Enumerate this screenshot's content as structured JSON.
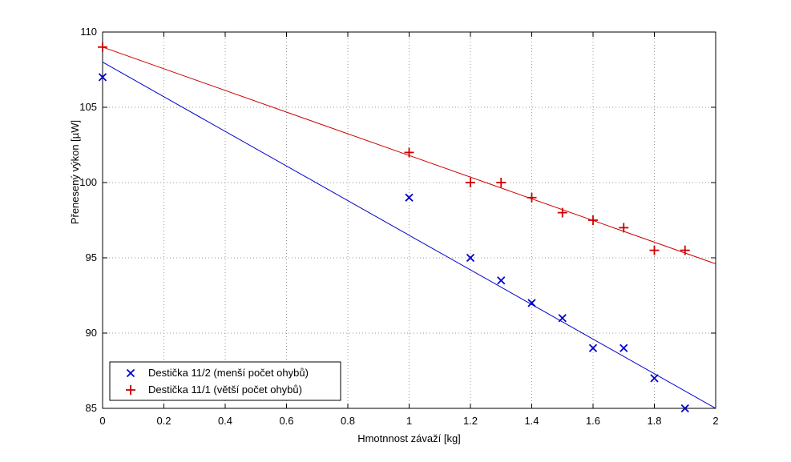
{
  "figure": {
    "background": "#ffffff"
  },
  "chart_data": {
    "type": "scatter",
    "title": "",
    "xlabel": "Hmotnnost závaží [kg]",
    "ylabel": "Přenesený výkon [µW]",
    "xlim": [
      0,
      2
    ],
    "ylim": [
      85,
      110
    ],
    "xticks": [
      0,
      0.2,
      0.4,
      0.6,
      0.8,
      1,
      1.2,
      1.4,
      1.6,
      1.8,
      2
    ],
    "yticks": [
      85,
      90,
      95,
      100,
      105,
      110
    ],
    "grid": true,
    "grid_style": "dotted",
    "grid_color": "#999999",
    "axis_color": "#000000",
    "legend": {
      "position": "bottom-left",
      "background": "#ffffff",
      "border_color": "#000000"
    },
    "series": [
      {
        "name": "Destička 11/2 (menší počet ohybů)",
        "marker": "x",
        "color": "#0000cc",
        "points": [
          [
            0,
            107
          ],
          [
            1,
            99
          ],
          [
            1.2,
            95
          ],
          [
            1.3,
            93.5
          ],
          [
            1.4,
            92
          ],
          [
            1.5,
            91
          ],
          [
            1.6,
            89
          ],
          [
            1.7,
            89
          ],
          [
            1.8,
            87
          ],
          [
            1.9,
            85
          ]
        ],
        "fit_line": {
          "x": [
            0,
            2
          ],
          "y": [
            108,
            85
          ]
        }
      },
      {
        "name": "Destička 11/1 (větší počet ohybů)",
        "marker": "+",
        "color": "#cc0000",
        "points": [
          [
            0,
            109
          ],
          [
            1,
            102
          ],
          [
            1.2,
            100
          ],
          [
            1.3,
            100
          ],
          [
            1.4,
            99
          ],
          [
            1.5,
            98
          ],
          [
            1.6,
            97.5
          ],
          [
            1.7,
            97
          ],
          [
            1.8,
            95.5
          ],
          [
            1.9,
            95.5
          ]
        ],
        "fit_line": {
          "x": [
            0,
            2
          ],
          "y": [
            109,
            94.6
          ]
        }
      }
    ]
  }
}
